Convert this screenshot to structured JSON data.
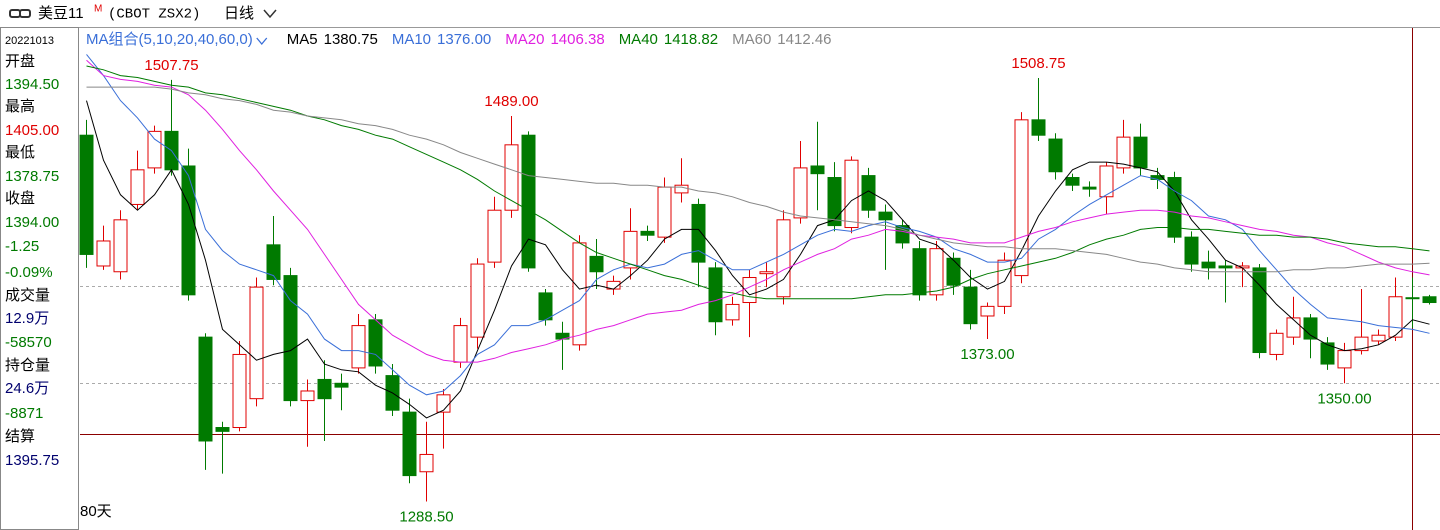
{
  "chart_data": {
    "type": "candlestick",
    "title": "美豆11",
    "title_sup": "M",
    "subtitle": "(CBOT ZSX2)",
    "period": "日线",
    "ma_group": "MA组合(5,10,20,40,60,0)",
    "days_label": "80天",
    "up_color": "#e00000",
    "down_color": "#007a00",
    "ylim": [
      1274.75,
      1534.75
    ],
    "open": [
      1479,
      1411,
      1408,
      1443,
      1462,
      1481,
      1463,
      1374,
      1327,
      1327,
      1342,
      1422,
      1406,
      1341,
      1352,
      1350,
      1358,
      1383,
      1354,
      1335,
      1304,
      1335,
      1361,
      1374,
      1413,
      1440,
      1479,
      1397,
      1376,
      1370,
      1416,
      1399,
      1410,
      1429,
      1426,
      1449,
      1443,
      1410,
      1383,
      1392,
      1407,
      1395,
      1436,
      1463,
      1457,
      1431,
      1458,
      1439,
      1432,
      1420,
      1396,
      1415,
      1400,
      1385,
      1390,
      1406,
      1487,
      1477,
      1457,
      1452,
      1447,
      1462,
      1478,
      1458,
      1457,
      1426,
      1413,
      1411,
      1410,
      1410,
      1365,
      1374,
      1384,
      1371,
      1358,
      1367,
      1372,
      1374,
      1394.5,
      1395
    ],
    "high": [
      1487,
      1432,
      1440,
      1471,
      1484,
      1507.75,
      1472,
      1376,
      1330,
      1372,
      1405,
      1437,
      1410,
      1352,
      1362,
      1355,
      1386,
      1386,
      1360,
      1342,
      1330,
      1347,
      1384,
      1415,
      1447,
      1489,
      1481,
      1399,
      1382,
      1427,
      1425,
      1406,
      1441,
      1432,
      1457,
      1467,
      1446,
      1413,
      1395,
      1409,
      1413,
      1440,
      1476,
      1486,
      1465,
      1468,
      1462,
      1443,
      1435,
      1424,
      1424,
      1418,
      1409,
      1392,
      1418,
      1491,
      1508.75,
      1480,
      1459,
      1455,
      1465,
      1487,
      1485,
      1462,
      1460,
      1429,
      1419,
      1414,
      1413,
      1412,
      1378,
      1395,
      1386,
      1374,
      1371,
      1399,
      1378,
      1405,
      1405,
      1396
    ],
    "low": [
      1410,
      1409,
      1404,
      1440,
      1459,
      1458,
      1393,
      1305,
      1303,
      1325,
      1338,
      1401,
      1338,
      1317,
      1320,
      1336,
      1355,
      1355,
      1333,
      1298,
      1288.5,
      1316,
      1358,
      1368,
      1410,
      1436,
      1408,
      1380,
      1357,
      1367,
      1399,
      1396,
      1404,
      1424,
      1423,
      1444,
      1400,
      1375,
      1380,
      1374,
      1400,
      1391,
      1433,
      1440,
      1429,
      1428,
      1436,
      1409,
      1420,
      1393,
      1393,
      1396,
      1378,
      1373,
      1386,
      1402,
      1476,
      1456,
      1450,
      1447,
      1438,
      1459,
      1458,
      1451,
      1423,
      1408,
      1404,
      1392,
      1400,
      1363,
      1362,
      1370,
      1363,
      1357,
      1350,
      1365,
      1370,
      1372,
      1378.75,
      1391
    ],
    "close": [
      1417,
      1424,
      1435,
      1461,
      1481,
      1461,
      1396,
      1320,
      1325,
      1365,
      1400,
      1404,
      1341,
      1346,
      1342,
      1348,
      1380,
      1359,
      1336,
      1302,
      1313,
      1344,
      1380,
      1412,
      1440,
      1474,
      1410,
      1383,
      1373,
      1423,
      1408,
      1403,
      1429,
      1427,
      1452,
      1453,
      1413,
      1382,
      1391,
      1405,
      1408,
      1435,
      1462,
      1459,
      1432,
      1466,
      1440,
      1435,
      1423,
      1396,
      1420,
      1401,
      1381,
      1390,
      1414,
      1487,
      1479,
      1460,
      1453,
      1451,
      1463,
      1478,
      1462,
      1456,
      1426,
      1412,
      1410,
      1410,
      1411,
      1366,
      1376,
      1384,
      1373,
      1360,
      1367,
      1374,
      1375,
      1395,
      1394,
      1392
    ],
    "series": [
      {
        "name": "MA5",
        "color": "#000000",
        "value_label": "1380.75",
        "values": [
          1497,
          1466,
          1448,
          1440,
          1448,
          1461,
          1443,
          1414,
          1378,
          1370,
          1362,
          1365,
          1367,
          1373,
          1360,
          1357,
          1356,
          1349,
          1345,
          1339,
          1332,
          1336,
          1346,
          1367,
          1388,
          1411,
          1425,
          1422,
          1409,
          1399,
          1401,
          1399,
          1406,
          1414,
          1425,
          1430,
          1430,
          1419,
          1406,
          1396,
          1399,
          1404,
          1417,
          1432,
          1435,
          1445,
          1450,
          1445,
          1435,
          1425,
          1422,
          1414,
          1405,
          1399,
          1403,
          1419,
          1437,
          1450,
          1461,
          1465,
          1465,
          1464,
          1462,
          1460,
          1450,
          1435,
          1425,
          1414,
          1410,
          1401,
          1391,
          1383,
          1375,
          1370,
          1367,
          1368,
          1370,
          1375,
          1383,
          1380.75
        ]
      },
      {
        "name": "MA10",
        "color": "#3a6fd8",
        "value_label": "1376.00",
        "values": [
          1521,
          1510,
          1497,
          1488,
          1477,
          1471,
          1458,
          1430,
          1419,
          1412,
          1409,
          1406,
          1393,
          1386,
          1373,
          1367,
          1367,
          1365,
          1357,
          1349,
          1344,
          1346,
          1354,
          1365,
          1370,
          1380,
          1380,
          1383,
          1388,
          1393,
          1404,
          1409,
          1412,
          1410,
          1412,
          1417,
          1419,
          1414,
          1409,
          1409,
          1413,
          1417,
          1422,
          1427,
          1430,
          1429,
          1432,
          1434,
          1431,
          1429,
          1426,
          1420,
          1417,
          1413,
          1413,
          1415,
          1425,
          1430,
          1437,
          1443,
          1448,
          1453,
          1458,
          1456,
          1450,
          1445,
          1437,
          1435,
          1430,
          1419,
          1409,
          1399,
          1391,
          1384,
          1383,
          1382,
          1380,
          1379,
          1378,
          1376
        ]
      },
      {
        "name": "MA20",
        "color": "#e020e0",
        "value_label": "1406.38",
        "values": [
          1518,
          1510,
          1508,
          1507,
          1505,
          1504,
          1500,
          1492,
          1482,
          1471,
          1461,
          1450,
          1440,
          1430,
          1417,
          1404,
          1391,
          1383,
          1375,
          1370,
          1365,
          1362,
          1361,
          1361,
          1363,
          1366,
          1368,
          1370,
          1373,
          1375,
          1378,
          1380,
          1383,
          1386,
          1387,
          1388,
          1391,
          1393,
          1396,
          1400,
          1404,
          1409,
          1413,
          1417,
          1420,
          1425,
          1427,
          1430,
          1429,
          1427,
          1426,
          1425,
          1423,
          1423,
          1423,
          1426,
          1429,
          1431,
          1434,
          1436,
          1438,
          1439,
          1440,
          1440,
          1439,
          1437,
          1436,
          1434,
          1432,
          1430,
          1429,
          1427,
          1426,
          1423,
          1421,
          1417,
          1413,
          1410,
          1408,
          1406.38
        ]
      },
      {
        "name": "MA40",
        "color": "#007a00",
        "value_label": "1418.82",
        "values": [
          1515,
          1513,
          1510,
          1509,
          1507,
          1505,
          1504,
          1501,
          1500,
          1498,
          1496,
          1494,
          1492,
          1489,
          1487,
          1484,
          1482,
          1479,
          1477,
          1473,
          1469,
          1465,
          1461,
          1456,
          1450,
          1445,
          1440,
          1435,
          1429,
          1423,
          1418,
          1415,
          1412,
          1409,
          1406,
          1404,
          1401,
          1398,
          1397,
          1395,
          1394,
          1394,
          1394,
          1394,
          1394,
          1394,
          1395,
          1396,
          1396,
          1397,
          1398,
          1400,
          1404,
          1407,
          1409,
          1411,
          1413,
          1415,
          1418,
          1422,
          1425,
          1427,
          1430,
          1431,
          1431,
          1430,
          1430,
          1429,
          1428,
          1427,
          1427,
          1426,
          1426,
          1425,
          1423,
          1422,
          1421,
          1421,
          1420,
          1418.82
        ]
      },
      {
        "name": "MA60",
        "color": "#888888",
        "value_label": "1412.46",
        "values": [
          1504,
          1504,
          1504,
          1504,
          1504,
          1503,
          1501,
          1500,
          1498,
          1497,
          1495,
          1492,
          1491,
          1489,
          1488,
          1487,
          1485,
          1484,
          1482,
          1479,
          1477,
          1474,
          1470,
          1467,
          1464,
          1461,
          1458,
          1457,
          1456,
          1455,
          1454,
          1454,
          1453,
          1453,
          1452,
          1452,
          1450,
          1449,
          1447,
          1444,
          1442,
          1439,
          1437,
          1436,
          1435,
          1434,
          1433,
          1432,
          1430,
          1427,
          1425,
          1423,
          1422,
          1421,
          1421,
          1420,
          1420,
          1420,
          1419,
          1418,
          1417,
          1415,
          1413,
          1412,
          1410,
          1409,
          1408,
          1408,
          1408,
          1408,
          1408,
          1409,
          1409,
          1410,
          1410,
          1411,
          1412,
          1412,
          1412,
          1412.46
        ]
      }
    ],
    "annotations": [
      {
        "value": 1507.75,
        "label": "1507.75"
      },
      {
        "value": 1489,
        "label": "1489.00"
      },
      {
        "value": 1508.75,
        "label": "1508.75"
      },
      {
        "value": 1288.5,
        "label": "1288.50"
      },
      {
        "value": 1373,
        "label": "1373.00"
      },
      {
        "value": 1350,
        "label": "1350.00"
      }
    ]
  },
  "info_panel": {
    "date": "20221013",
    "rows": [
      {
        "text": "开盘",
        "color": "#000000"
      },
      {
        "text": "1394.50",
        "color": "#007a00"
      },
      {
        "text": "最高",
        "color": "#000000"
      },
      {
        "text": "1405.00",
        "color": "#e00000"
      },
      {
        "text": "最低",
        "color": "#000000"
      },
      {
        "text": "1378.75",
        "color": "#007a00"
      },
      {
        "text": "收盘",
        "color": "#000000"
      },
      {
        "text": "1394.00",
        "color": "#007a00"
      },
      {
        "text": "-1.25",
        "color": "#007a00"
      },
      {
        "text": "-0.09%",
        "color": "#007a00"
      },
      {
        "text": "成交量",
        "color": "#000000"
      },
      {
        "text": "12.9万",
        "color": "#00006e"
      },
      {
        "text": "-58570",
        "color": "#007a00"
      },
      {
        "text": "持仓量",
        "color": "#000000"
      },
      {
        "text": "24.6万",
        "color": "#00006e"
      },
      {
        "text": "-8871",
        "color": "#007a00"
      },
      {
        "text": "结算",
        "color": "#000000"
      },
      {
        "text": "1395.75",
        "color": "#00006e"
      }
    ]
  }
}
